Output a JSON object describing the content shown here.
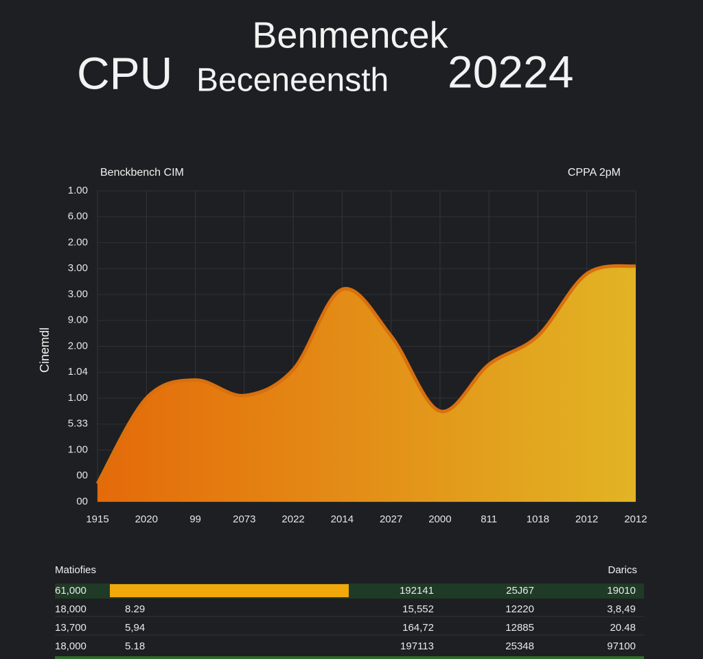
{
  "chart_data": {
    "type": "area",
    "title": "Benmencek",
    "subtitle": [
      "CPU",
      "Beceneensth",
      "20224"
    ],
    "annotations": [
      "Benckbench CIM",
      "CPPA 2pM"
    ],
    "ylabel": "Cinemdl",
    "categories": [
      "1915",
      "2020",
      "99",
      "2073",
      "2022",
      "2014",
      "2027",
      "2000",
      "811",
      "1018",
      "2012",
      "2012"
    ],
    "values": [
      0.7,
      4.0,
      4.7,
      4.1,
      5.1,
      8.2,
      6.4,
      3.5,
      5.3,
      6.4,
      8.8,
      9.1
    ],
    "color": "#d9700e",
    "gradient": [
      "#e46a0a",
      "#e2b424"
    ],
    "ylim": [
      0,
      12
    ],
    "yticks": [
      {
        "value": 0,
        "label": "00"
      },
      {
        "value": 1,
        "label": "00"
      },
      {
        "value": 2,
        "label": "1.00"
      },
      {
        "value": 3,
        "label": "5.33"
      },
      {
        "value": 4,
        "label": "1.00"
      },
      {
        "value": 5,
        "label": "1.04"
      },
      {
        "value": 6,
        "label": "2.00"
      },
      {
        "value": 7,
        "label": "9.00"
      },
      {
        "value": 8,
        "label": "3.00"
      },
      {
        "value": 9,
        "label": "3.00"
      },
      {
        "value": 10,
        "label": "2.00"
      },
      {
        "value": 11,
        "label": "6.00"
      },
      {
        "value": 12,
        "label": "1.00"
      }
    ],
    "grid": true
  },
  "table": {
    "header": [
      "Matiofies",
      "Darics"
    ],
    "rows": [
      [
        "61,000",
        "",
        "192141",
        "25J67",
        "19010"
      ],
      [
        "18,000",
        "8.29",
        "15,552",
        "12220",
        "3,8,49"
      ],
      [
        "13,700",
        "5,94",
        "164,72",
        "12885",
        "20.48"
      ],
      [
        "18,000",
        "5.18",
        "197113",
        "25348",
        "97100"
      ]
    ]
  }
}
